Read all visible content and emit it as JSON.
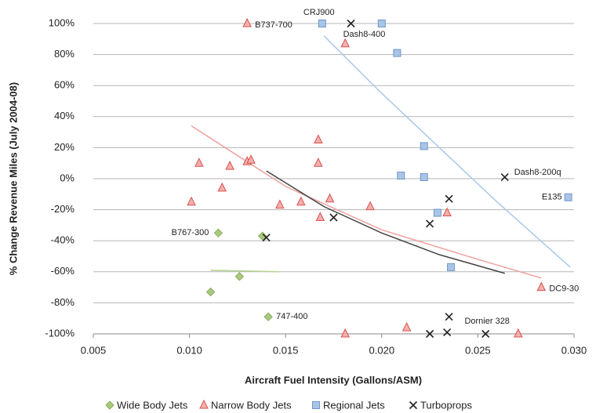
{
  "chart_data": {
    "type": "scatter",
    "x_label": "Aircraft Fuel Intensity (Gallons/ASM)",
    "y_label": "% Change Revenue Miles (July 2004-08)",
    "xlim": [
      0.005,
      0.03
    ],
    "ylim": [
      -100,
      100
    ],
    "xticks": [
      0.005,
      {
        "value": 0.01,
        "label": "0.010"
      },
      0.015,
      {
        "value": 0.02,
        "label": "0.020"
      },
      0.025,
      {
        "value": 0.03,
        "label": "0.030"
      }
    ],
    "yticks": [
      {
        "value": -100,
        "label": "-100%"
      },
      {
        "value": -80,
        "label": "-80%"
      },
      {
        "value": -60,
        "label": "-60%"
      },
      {
        "value": -40,
        "label": "-40%"
      },
      {
        "value": -20,
        "label": "-20%"
      },
      {
        "value": 0,
        "label": "0%"
      },
      {
        "value": 20,
        "label": "20%"
      },
      {
        "value": 40,
        "label": "40%"
      },
      {
        "value": 60,
        "label": "60%"
      },
      {
        "value": 80,
        "label": "80%"
      },
      {
        "value": 100,
        "label": "100%"
      }
    ],
    "grid": true,
    "legend": "bottom",
    "series": [
      {
        "name": "Wide Body Jets",
        "marker": "diamond",
        "color": "#a9c97f",
        "stroke": "#8aad5c",
        "x": [
          0.0115,
          0.0138,
          0.0126,
          0.0111,
          0.0141
        ],
        "values": [
          -35,
          -37,
          -63,
          -73,
          -89
        ],
        "labels": [
          "B767-300",
          null,
          null,
          null,
          "747-400"
        ]
      },
      {
        "name": "Narrow Body Jets",
        "marker": "triangle",
        "color": "#f2b0ae",
        "stroke": "#d9534f",
        "x": [
          0.013,
          0.0181,
          0.0105,
          0.0121,
          0.0117,
          0.0101,
          0.013,
          0.0132,
          0.0167,
          0.0167,
          0.0147,
          0.0158,
          0.0173,
          0.0168,
          0.0194,
          0.0234,
          0.0283,
          0.0181,
          0.0213,
          0.0271
        ],
        "values": [
          100,
          87,
          10,
          8,
          -6,
          -15,
          11,
          12,
          25,
          10,
          -17,
          -15,
          -13,
          -25,
          -18,
          -22,
          -70,
          -100,
          -96,
          -100
        ],
        "labels": [
          "B737-700",
          null,
          null,
          null,
          null,
          null,
          null,
          null,
          null,
          null,
          null,
          null,
          null,
          null,
          null,
          null,
          "DC9-30",
          null,
          null,
          null
        ]
      },
      {
        "name": "Regional Jets",
        "marker": "square",
        "color": "#a9c4e6",
        "stroke": "#6f98cc",
        "x": [
          0.0169,
          0.02,
          0.0208,
          0.0222,
          0.021,
          0.0222,
          0.0229,
          0.0236,
          0.0297
        ],
        "values": [
          100,
          100,
          81,
          21,
          2,
          1,
          -22,
          -57,
          -12
        ],
        "labels": [
          "CRJ900",
          null,
          null,
          null,
          null,
          null,
          null,
          null,
          "E135"
        ]
      },
      {
        "name": "Turboprops",
        "marker": "x",
        "color": "#222222",
        "stroke": "#222222",
        "x": [
          0.0184,
          0.0264,
          0.0235,
          0.0225,
          0.0175,
          0.014,
          0.0235,
          0.0225,
          0.0234,
          0.0254
        ],
        "values": [
          100,
          1,
          -13,
          -29,
          -25,
          -38,
          -89,
          -100,
          -99,
          -100
        ],
        "labels": [
          "Dash8-400",
          "Dash8-200q",
          null,
          null,
          null,
          null,
          null,
          null,
          null,
          "Dornier 328"
        ]
      }
    ],
    "trendlines": [
      {
        "color": "#b6d38f",
        "x": [
          0.0111,
          0.0147
        ],
        "values": [
          -59,
          -60
        ]
      },
      {
        "color": "#f0a09e",
        "x": [
          0.0101,
          0.015,
          0.02,
          0.025,
          0.0283
        ],
        "values": [
          34,
          -5,
          -33,
          -52,
          -64
        ]
      },
      {
        "color": "#a9c8ea",
        "x": [
          0.017,
          0.02,
          0.023,
          0.026,
          0.0298
        ],
        "values": [
          92,
          55,
          20,
          -15,
          -57
        ]
      },
      {
        "color": "#444444",
        "x": [
          0.014,
          0.017,
          0.02,
          0.023,
          0.0264
        ],
        "values": [
          5,
          -18,
          -35,
          -49,
          -61
        ]
      }
    ]
  }
}
